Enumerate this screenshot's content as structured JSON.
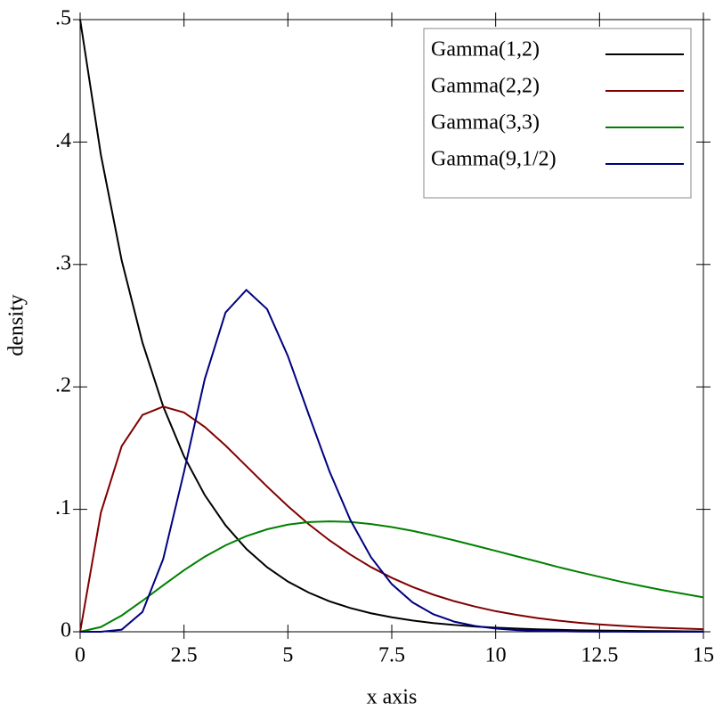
{
  "chart_data": {
    "type": "line",
    "x_label": "x axis",
    "y_label": "density",
    "x": [
      0,
      0.5,
      1,
      1.5,
      2,
      2.5,
      3,
      3.5,
      4,
      4.5,
      5,
      5.5,
      6,
      6.5,
      7,
      7.5,
      8,
      8.5,
      9,
      9.5,
      10,
      10.5,
      11,
      11.5,
      12,
      12.5,
      13,
      13.5,
      14,
      14.5,
      15
    ],
    "series": [
      {
        "name": "Gamma(1,2)",
        "color": "#000000",
        "values": [
          0.5,
          0.3894,
          0.3033,
          0.2362,
          0.1839,
          0.1433,
          0.1116,
          0.0869,
          0.0677,
          0.0527,
          0.041,
          0.032,
          0.0249,
          0.0194,
          0.0151,
          0.0118,
          0.0092,
          0.0071,
          0.0056,
          0.0043,
          0.0034,
          0.0026,
          0.002,
          0.0016,
          0.0012,
          0.001,
          0.0008,
          0.0006,
          0.0005,
          0.0004,
          0.0003
        ]
      },
      {
        "name": "Gamma(2,2)",
        "color": "#800000",
        "values": [
          0,
          0.0974,
          0.1516,
          0.1771,
          0.1839,
          0.1791,
          0.1673,
          0.1521,
          0.1353,
          0.1186,
          0.1026,
          0.0879,
          0.0747,
          0.0631,
          0.0528,
          0.0441,
          0.0366,
          0.0303,
          0.025,
          0.0206,
          0.0168,
          0.0138,
          0.0112,
          0.0091,
          0.0074,
          0.006,
          0.0049,
          0.0039,
          0.0032,
          0.0026,
          0.0021
        ]
      },
      {
        "name": "Gamma(3,3)",
        "color": "#008000",
        "values": [
          0,
          0.0039,
          0.0133,
          0.0253,
          0.038,
          0.0503,
          0.0613,
          0.0706,
          0.0781,
          0.0837,
          0.0875,
          0.0896,
          0.0902,
          0.0897,
          0.088,
          0.0855,
          0.0824,
          0.0787,
          0.0747,
          0.0704,
          0.0661,
          0.0617,
          0.0574,
          0.0529,
          0.0488,
          0.0449,
          0.041,
          0.0375,
          0.0341,
          0.0311,
          0.0281
        ]
      },
      {
        "name": "Gamma(9,1/2)",
        "color": "#000080",
        "values": [
          0,
          0,
          0.0017,
          0.0162,
          0.0595,
          0.1306,
          0.2065,
          0.2608,
          0.2792,
          0.2635,
          0.2252,
          0.1776,
          0.1311,
          0.0915,
          0.0609,
          0.0389,
          0.024,
          0.0143,
          0.0083,
          0.0047,
          0.0026,
          0.0014,
          0.0008,
          0.0004,
          0.0002,
          0.0001,
          0.0001,
          0,
          0,
          0,
          0
        ]
      }
    ],
    "xlim": [
      0,
      15
    ],
    "ylim": [
      0,
      0.5
    ],
    "xticks": [
      0,
      2.5,
      5,
      7.5,
      10,
      12.5,
      15
    ],
    "yticks": [
      0,
      {
        "value": 0.1,
        "label": ".1"
      },
      {
        "value": 0.2,
        "label": ".2"
      },
      {
        "value": 0.3,
        "label": ".3"
      },
      {
        "value": 0.4,
        "label": ".4"
      },
      {
        "value": 0.5,
        "label": ".5"
      }
    ],
    "legend": "top-right"
  }
}
